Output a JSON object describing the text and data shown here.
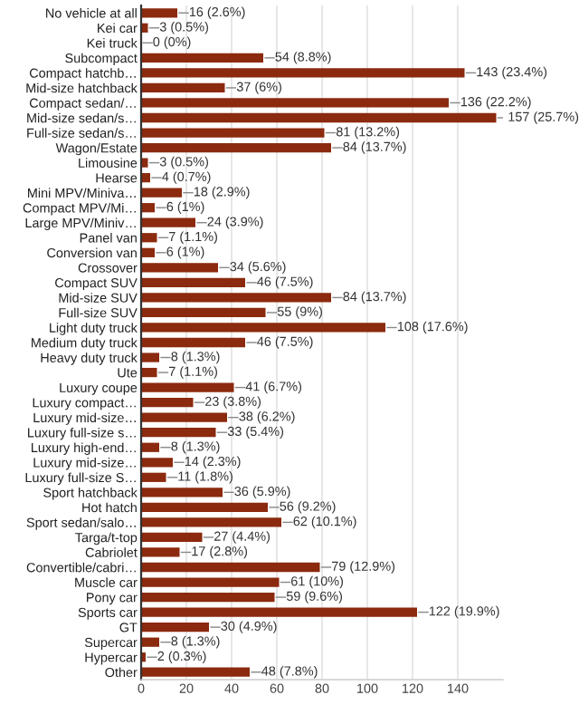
{
  "chart_data": {
    "type": "bar",
    "orientation": "horizontal",
    "color": "#8b2a0e",
    "grid": "x",
    "xlim": [
      0,
      160
    ],
    "xticks": [
      0,
      20,
      40,
      60,
      80,
      100,
      120,
      140
    ],
    "categories": [
      "No vehicle at all",
      "Kei car",
      "Kei truck",
      "Subcompact",
      "Compact hatchb…",
      "Mid-size hatchback",
      "Compact sedan/…",
      "Mid-size sedan/s…",
      "Full-size sedan/s…",
      "Wagon/Estate",
      "Limousine",
      "Hearse",
      "Mini MPV/Miniva…",
      "Compact MPV/Mi…",
      "Large MPV/Miniv…",
      "Panel van",
      "Conversion van",
      "Crossover",
      "Compact SUV",
      "Mid-size SUV",
      "Full-size SUV",
      "Light duty truck",
      "Medium duty truck",
      "Heavy duty truck",
      "Ute",
      "Luxury coupe",
      "Luxury compact…",
      "Luxury mid-size…",
      "Luxury full-size s…",
      "Luxury high-end…",
      "Luxury mid-size…",
      "Luxury full-size S…",
      "Sport hatchback",
      "Hot hatch",
      "Sport sedan/salo…",
      "Targa/t-top",
      "Cabriolet",
      "Convertible/cabri…",
      "Muscle car",
      "Pony car",
      "Sports car",
      "GT",
      "Supercar",
      "Hypercar",
      "Other"
    ],
    "values": [
      16,
      3,
      0,
      54,
      143,
      37,
      136,
      157,
      81,
      84,
      3,
      4,
      18,
      6,
      24,
      7,
      6,
      34,
      46,
      84,
      55,
      108,
      46,
      8,
      7,
      41,
      23,
      38,
      33,
      8,
      14,
      11,
      36,
      56,
      62,
      27,
      17,
      79,
      61,
      59,
      122,
      30,
      8,
      2,
      48
    ],
    "value_labels": [
      "16 (2.6%)",
      "3 (0.5%)",
      "0 (0%)",
      "54 (8.8%)",
      "143 (23.4%)",
      "37 (6%)",
      "136 (22.2%)",
      "157 (25.7%)",
      "81 (13.2%)",
      "84 (13.7%)",
      "3 (0.5%)",
      "4 (0.7%)",
      "18 (2.9%)",
      "6 (1%)",
      "24 (3.9%)",
      "7 (1.1%)",
      "6 (1%)",
      "34 (5.6%)",
      "46 (7.5%)",
      "84 (13.7%)",
      "55 (9%)",
      "108 (17.6%)",
      "46 (7.5%)",
      "8 (1.3%)",
      "7 (1.1%)",
      "41 (6.7%)",
      "23 (3.8%)",
      "38 (6.2%)",
      "33 (5.4%)",
      "8 (1.3%)",
      "14 (2.3%)",
      "11 (1.8%)",
      "36 (5.9%)",
      "56 (9.2%)",
      "62 (10.1%)",
      "27 (4.4%)",
      "17 (2.8%)",
      "79 (12.9%)",
      "61 (10%)",
      "59 (9.6%)",
      "122 (19.9%)",
      "30 (4.9%)",
      "8 (1.3%)",
      "2 (0.3%)",
      "48 (7.8%)"
    ]
  }
}
